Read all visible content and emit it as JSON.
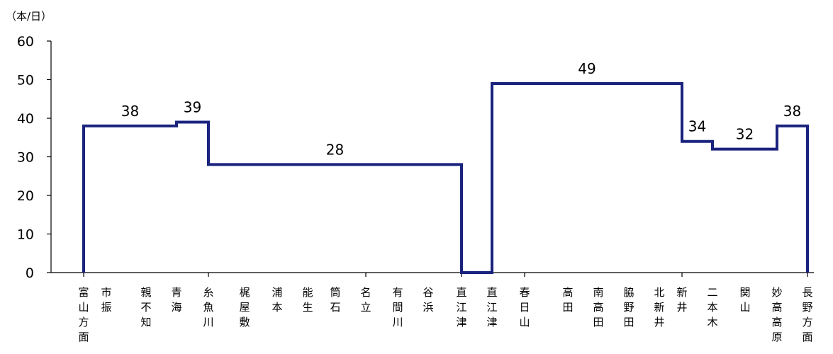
{
  "chart_data": {
    "type": "line",
    "step": true,
    "unit": "（本/日）",
    "ylim": [
      0,
      60
    ],
    "yticks": [
      0,
      10,
      20,
      30,
      40,
      50,
      60
    ],
    "grid": false,
    "legend": "none",
    "line_color": "#1a237e",
    "stations": [
      "富山方面",
      "市振",
      "親不知",
      "青海",
      "糸魚川",
      "梶屋敷",
      "浦本",
      "能生",
      "筒石",
      "名立",
      "有間川",
      "谷浜",
      "直江津",
      "直江津",
      "春日山",
      "高田",
      "南高田",
      "脇野田",
      "北新井",
      "新井",
      "二本木",
      "関山",
      "妙高高原",
      "長野方面"
    ],
    "segments": [
      {
        "from": "富山方面",
        "to": "青海",
        "value": 38
      },
      {
        "from": "青海",
        "to": "糸魚川",
        "value": 39
      },
      {
        "from": "糸魚川",
        "to": "直江津",
        "value": 28
      },
      {
        "from": "直江津",
        "to": "新井",
        "value": 49
      },
      {
        "from": "新井",
        "to": "二本木",
        "value": 34
      },
      {
        "from": "二本木",
        "to": "妙高高原",
        "value": 32
      },
      {
        "from": "妙高高原",
        "to": "長野方面",
        "value": 38
      }
    ]
  }
}
